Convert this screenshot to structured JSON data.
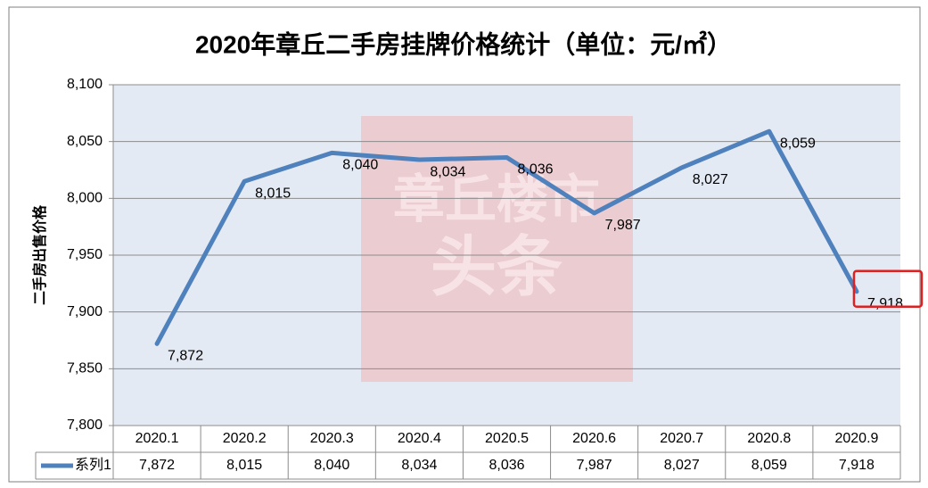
{
  "chart_data": {
    "type": "line",
    "title": "2020年章丘二手房挂牌价格统计（单位：元/㎡）",
    "y_label": "二手房出售价格",
    "watermark": [
      "章丘楼市",
      "头条"
    ],
    "categories": [
      "2020.1",
      "2020.2",
      "2020.3",
      "2020.4",
      "2020.5",
      "2020.6",
      "2020.7",
      "2020.8",
      "2020.9"
    ],
    "series": [
      {
        "name": "系列1",
        "color": "#4f81bd",
        "values": [
          7872,
          8015,
          8040,
          8034,
          8036,
          7987,
          8027,
          8059,
          7918
        ],
        "value_labels": [
          "7,872",
          "8,015",
          "8,040",
          "8,034",
          "8,036",
          "7,987",
          "8,027",
          "8,059",
          "7,918"
        ]
      }
    ],
    "ylim": [
      7800,
      8100
    ],
    "yticks": [
      {
        "value": 7800,
        "label": "7,800"
      },
      {
        "value": 7850,
        "label": "7,850"
      },
      {
        "value": 7900,
        "label": "7,900"
      },
      {
        "value": 7950,
        "label": "7,950"
      },
      {
        "value": 8000,
        "label": "8,000"
      },
      {
        "value": 8050,
        "label": "8,050"
      },
      {
        "value": 8100,
        "label": "8,100"
      }
    ],
    "grid": true
  }
}
